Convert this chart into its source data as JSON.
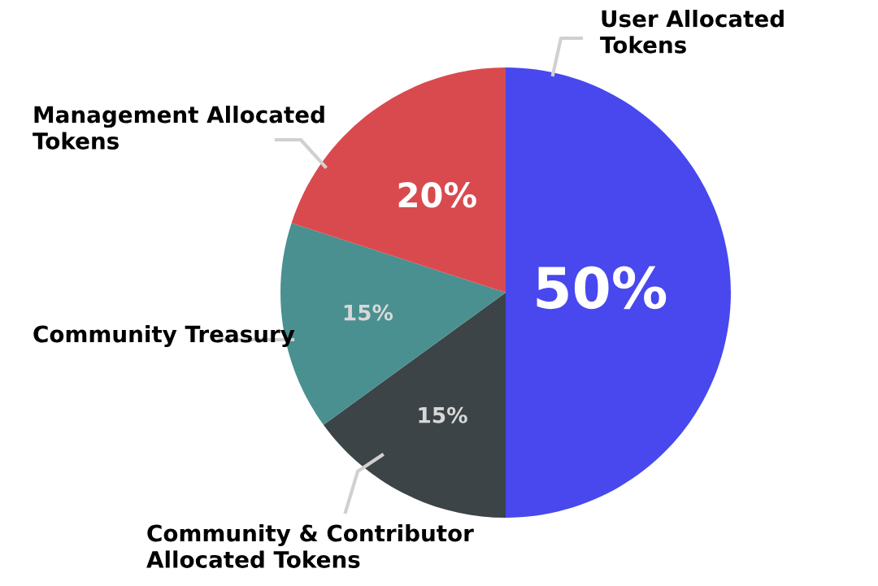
{
  "chart_data": {
    "type": "pie",
    "categories": [
      "User Allocated Tokens",
      "Community & Contributor Allocated Tokens",
      "Community Treasury",
      "Management Allocated Tokens"
    ],
    "values": [
      50,
      15,
      15,
      20
    ],
    "colors": [
      "#4848ee",
      "#3c4448",
      "#4a9090",
      "#d94a4f"
    ],
    "value_labels": [
      "50%",
      "15%",
      "15%",
      "20%"
    ],
    "legend": false
  }
}
